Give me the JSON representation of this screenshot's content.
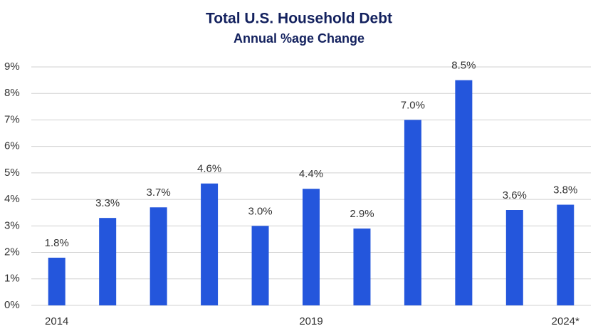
{
  "chart_data": {
    "type": "bar",
    "title": "Total U.S. Household Debt",
    "subtitle": "Annual %age Change",
    "categories": [
      "2014",
      null,
      null,
      null,
      null,
      "2019",
      null,
      null,
      null,
      null,
      "2024*"
    ],
    "values": [
      1.8,
      3.3,
      3.7,
      4.6,
      3.0,
      4.4,
      2.9,
      7.0,
      8.5,
      3.6,
      3.8
    ],
    "value_labels": [
      "1.8%",
      "3.3%",
      "3.7%",
      "4.6%",
      "3.0%",
      "4.4%",
      "2.9%",
      "7.0%",
      "8.5%",
      "3.6%",
      "3.8%"
    ],
    "color": "#2456dc",
    "ylim": [
      0,
      9
    ],
    "yticks": [
      {
        "value": 0,
        "label": "0%"
      },
      {
        "value": 1,
        "label": "1%"
      },
      {
        "value": 2,
        "label": "2%"
      },
      {
        "value": 3,
        "label": "3%"
      },
      {
        "value": 4,
        "label": "4%"
      },
      {
        "value": 5,
        "label": "5%"
      },
      {
        "value": 6,
        "label": "6%"
      },
      {
        "value": 7,
        "label": "7%"
      },
      {
        "value": 8,
        "label": "8%"
      },
      {
        "value": 9,
        "label": "9%"
      }
    ],
    "grid": true
  }
}
